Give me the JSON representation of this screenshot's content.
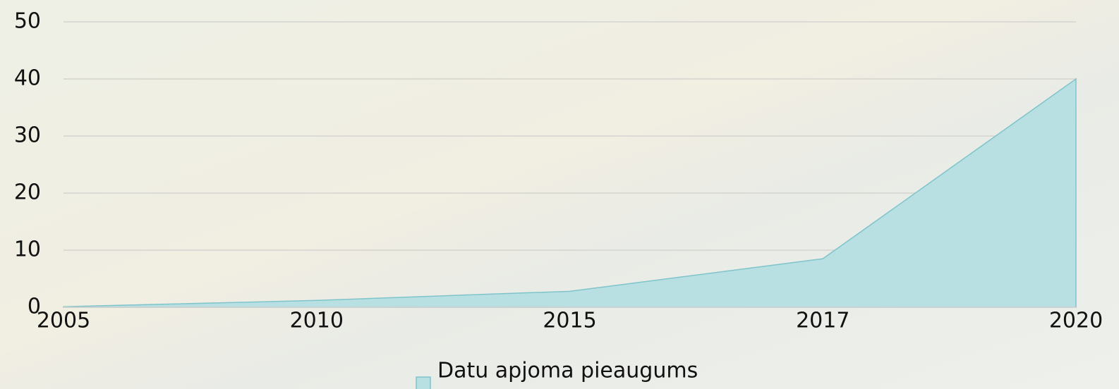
{
  "chart_data": {
    "type": "area",
    "categories": [
      "2005",
      "2010",
      "2015",
      "2017",
      "2020"
    ],
    "series": [
      {
        "name": "Datu apjoma pieaugums",
        "color": "#b8dfe2",
        "values": [
          0.1,
          1.2,
          2.8,
          8.5,
          40
        ]
      }
    ],
    "ylim": [
      0,
      50
    ],
    "yticks": [
      0,
      10,
      20,
      30,
      40,
      50
    ],
    "grid": true,
    "legend": "bottom"
  }
}
